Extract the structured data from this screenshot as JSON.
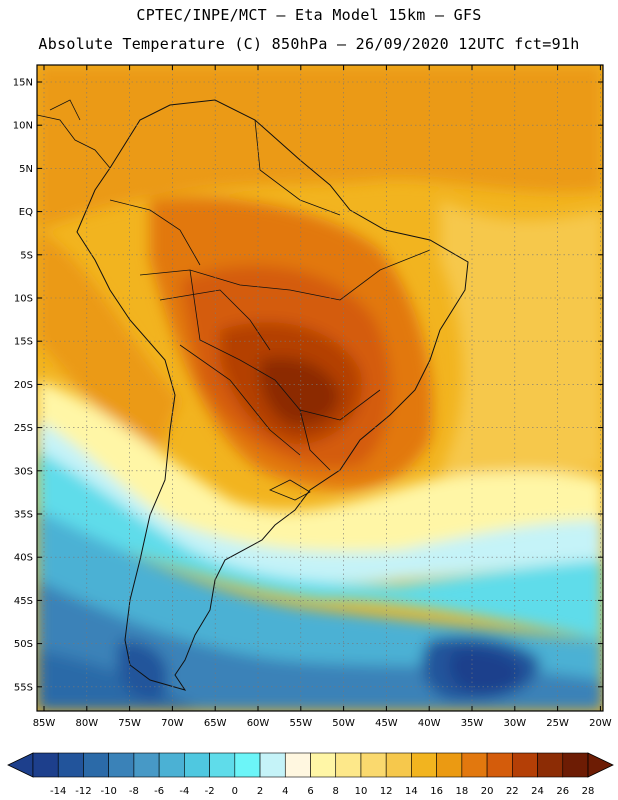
{
  "header": {
    "line1": "CPTEC/INPE/MCT –  Eta Model 15km – GFS",
    "line2": "Absolute Temperature (C) 850hPa – 26/09/2020 12UTC fct=91h"
  },
  "map": {
    "lat_labels": [
      "15N",
      "10N",
      "5N",
      "EQ",
      "5S",
      "10S",
      "15S",
      "20S",
      "25S",
      "30S",
      "35S",
      "40S",
      "45S",
      "50S",
      "55S"
    ],
    "lon_labels": [
      "85W",
      "80W",
      "75W",
      "70W",
      "65W",
      "60W",
      "55W",
      "50W",
      "45W",
      "40W",
      "35W",
      "30W",
      "25W",
      "20W"
    ]
  },
  "colorbar": {
    "labels": [
      "-14",
      "-12",
      "-10",
      "-8",
      "-6",
      "-4",
      "-2",
      "0",
      "2",
      "4",
      "6",
      "8",
      "10",
      "12",
      "14",
      "16",
      "18",
      "20",
      "22",
      "24",
      "26",
      "28"
    ],
    "colors": [
      "#1d3f8c",
      "#22549b",
      "#2b6aa8",
      "#3a82b8",
      "#4799c6",
      "#4bb1d4",
      "#4fc8e0",
      "#5fdcea",
      "#6cf5f8",
      "#c5f3f8",
      "#fff7e0",
      "#fff6a6",
      "#fde88a",
      "#fad96e",
      "#f6c84c",
      "#f2b41f",
      "#eb9a12",
      "#e2780e",
      "#d45c0b",
      "#b43f06",
      "#8c2c05",
      "#6d1c04"
    ]
  }
}
